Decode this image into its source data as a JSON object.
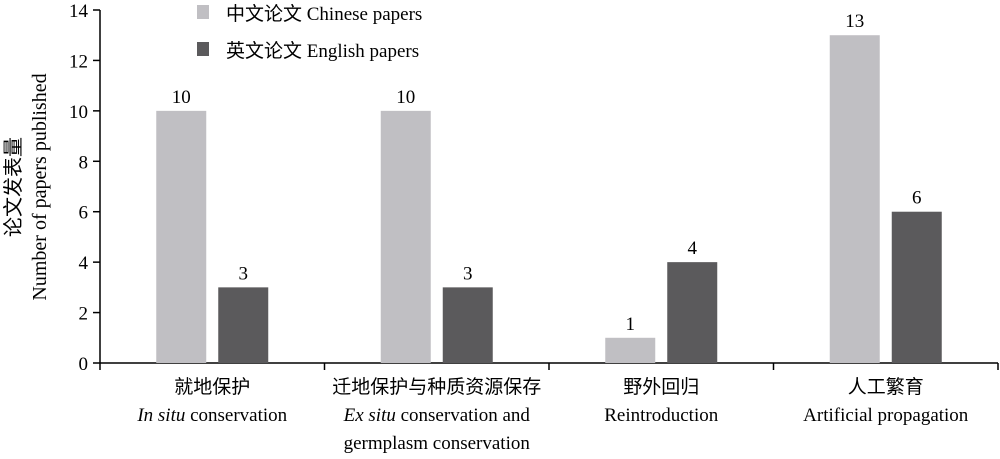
{
  "chart_data": {
    "type": "bar",
    "ylabel_cn": "论文发表量",
    "ylabel_en": "Number of papers published",
    "ylim": [
      0,
      14
    ],
    "yticks": [
      0,
      2,
      4,
      6,
      8,
      10,
      12,
      14
    ],
    "grid": false,
    "legend_position": "top-left",
    "categories": [
      {
        "cn": "就地保护",
        "en_italic": "In situ",
        "en_rest": " conservation",
        "en_line2": ""
      },
      {
        "cn": "迁地保护与种质资源保存",
        "en_italic": "Ex situ",
        "en_rest": " conservation and",
        "en_line2": "germplasm conservation"
      },
      {
        "cn": "野外回归",
        "en_italic": "",
        "en_rest": "Reintroduction",
        "en_line2": ""
      },
      {
        "cn": "人工繁育",
        "en_italic": "",
        "en_rest": "Artificial propagation",
        "en_line2": ""
      }
    ],
    "series": [
      {
        "name": "中文论文 Chinese papers",
        "color": "#c0bfc3",
        "values": [
          10,
          10,
          1,
          13
        ]
      },
      {
        "name": "英文论文 English papers",
        "color": "#5b5a5c",
        "values": [
          3,
          3,
          4,
          6
        ]
      }
    ]
  }
}
